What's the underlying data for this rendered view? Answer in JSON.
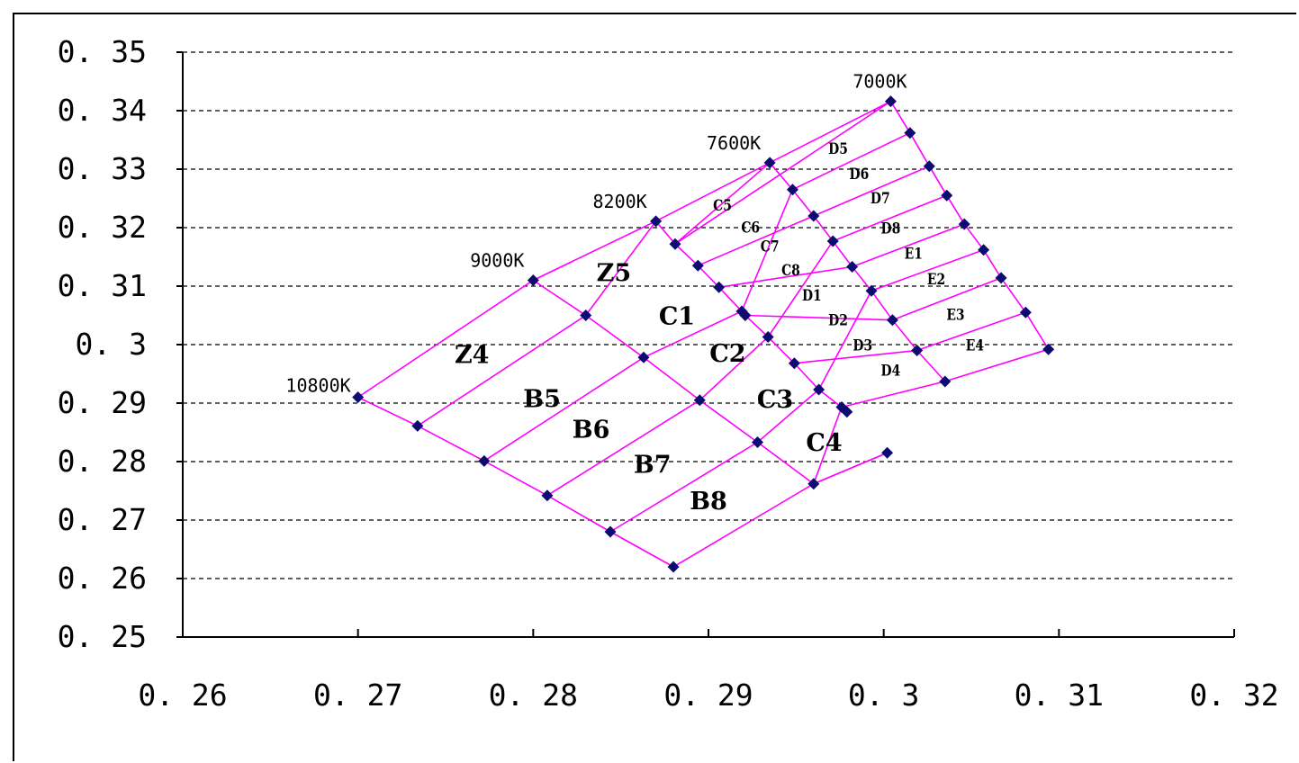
{
  "chart_data": {
    "type": "scatter",
    "title": "",
    "xlabel": "",
    "ylabel": "",
    "xlim": [
      0.26,
      0.32
    ],
    "ylim": [
      0.25,
      0.35
    ],
    "grid": "horizontal-dashed",
    "x_ticks": [
      "0. 26",
      "0. 27",
      "0. 28",
      "0. 29",
      "0. 3",
      "0. 31",
      "0. 32"
    ],
    "y_ticks": [
      "0. 35",
      "0. 34",
      "0. 33",
      "0. 32",
      "0. 31",
      "0. 3",
      "0. 29",
      "0. 28",
      "0. 27",
      "0. 26",
      "0. 25"
    ],
    "colors": {
      "mesh": "#ff00ff",
      "marker": "#0b0b70"
    },
    "points": [
      [
        0.27,
        0.291
      ],
      [
        0.2734,
        0.2861
      ],
      [
        0.2772,
        0.2801
      ],
      [
        0.2808,
        0.2742
      ],
      [
        0.2844,
        0.268
      ],
      [
        0.288,
        0.262
      ],
      [
        0.28,
        0.311
      ],
      [
        0.283,
        0.305
      ],
      [
        0.2863,
        0.2978
      ],
      [
        0.2895,
        0.2905
      ],
      [
        0.2928,
        0.2833
      ],
      [
        0.296,
        0.2762
      ],
      [
        0.3002,
        0.2815
      ],
      [
        0.287,
        0.3211
      ],
      [
        0.2881,
        0.3172
      ],
      [
        0.2894,
        0.3135
      ],
      [
        0.2906,
        0.3098
      ],
      [
        0.2919,
        0.3057
      ],
      [
        0.2921,
        0.305
      ],
      [
        0.2934,
        0.3013
      ],
      [
        0.2949,
        0.2968
      ],
      [
        0.2963,
        0.2923
      ],
      [
        0.2976,
        0.2893
      ],
      [
        0.2979,
        0.2885
      ],
      [
        0.2935,
        0.3311
      ],
      [
        0.2948,
        0.3265
      ],
      [
        0.296,
        0.322
      ],
      [
        0.2971,
        0.3177
      ],
      [
        0.2982,
        0.3133
      ],
      [
        0.2993,
        0.3092
      ],
      [
        0.3005,
        0.3042
      ],
      [
        0.3019,
        0.299
      ],
      [
        0.3035,
        0.2937
      ],
      [
        0.3004,
        0.3416
      ],
      [
        0.3015,
        0.3362
      ],
      [
        0.3026,
        0.3305
      ],
      [
        0.3036,
        0.3255
      ],
      [
        0.3046,
        0.3206
      ],
      [
        0.3057,
        0.3162
      ],
      [
        0.3067,
        0.3114
      ],
      [
        0.3081,
        0.3055
      ],
      [
        0.3094,
        0.2992
      ]
    ],
    "annotations": [
      {
        "text": "10800K",
        "x": 0.27,
        "y": 0.291
      },
      {
        "text": "9000K",
        "x": 0.28,
        "y": 0.311
      },
      {
        "text": "8200K",
        "x": 0.287,
        "y": 0.3211
      },
      {
        "text": "7600K",
        "x": 0.2935,
        "y": 0.3311
      },
      {
        "text": "7000K",
        "x": 0.3004,
        "y": 0.3416
      }
    ],
    "bins": [
      {
        "name": "Z4",
        "x": 0.2765,
        "y": 0.298,
        "size": "large"
      },
      {
        "name": "Z5",
        "x": 0.2846,
        "y": 0.312,
        "size": "large"
      },
      {
        "name": "B5",
        "x": 0.2805,
        "y": 0.2905,
        "size": "large"
      },
      {
        "name": "B6",
        "x": 0.2833,
        "y": 0.2852,
        "size": "large"
      },
      {
        "name": "B7",
        "x": 0.2868,
        "y": 0.2792,
        "size": "large"
      },
      {
        "name": "B8",
        "x": 0.29,
        "y": 0.273,
        "size": "large"
      },
      {
        "name": "C1",
        "x": 0.2882,
        "y": 0.3046,
        "size": "large"
      },
      {
        "name": "C2",
        "x": 0.2911,
        "y": 0.2982,
        "size": "large"
      },
      {
        "name": "C3",
        "x": 0.2938,
        "y": 0.2904,
        "size": "large"
      },
      {
        "name": "C4",
        "x": 0.2966,
        "y": 0.283,
        "size": "large"
      },
      {
        "name": "C5",
        "x": 0.2908,
        "y": 0.3236,
        "size": "small"
      },
      {
        "name": "C6",
        "x": 0.2924,
        "y": 0.3198,
        "size": "small"
      },
      {
        "name": "C7",
        "x": 0.2935,
        "y": 0.3166,
        "size": "small"
      },
      {
        "name": "C8",
        "x": 0.2947,
        "y": 0.3125,
        "size": "small"
      },
      {
        "name": "D1",
        "x": 0.2959,
        "y": 0.3082,
        "size": "small"
      },
      {
        "name": "D2",
        "x": 0.2974,
        "y": 0.304,
        "size": "small"
      },
      {
        "name": "D3",
        "x": 0.2988,
        "y": 0.2997,
        "size": "small"
      },
      {
        "name": "D4",
        "x": 0.3004,
        "y": 0.2954,
        "size": "small"
      },
      {
        "name": "D5",
        "x": 0.2974,
        "y": 0.3333,
        "size": "small"
      },
      {
        "name": "D6",
        "x": 0.2986,
        "y": 0.329,
        "size": "small"
      },
      {
        "name": "D7",
        "x": 0.2998,
        "y": 0.3248,
        "size": "small"
      },
      {
        "name": "D8",
        "x": 0.3004,
        "y": 0.3197,
        "size": "small"
      },
      {
        "name": "E1",
        "x": 0.3017,
        "y": 0.3154,
        "size": "small"
      },
      {
        "name": "E2",
        "x": 0.303,
        "y": 0.311,
        "size": "small"
      },
      {
        "name": "E3",
        "x": 0.3041,
        "y": 0.3049,
        "size": "small"
      },
      {
        "name": "E4",
        "x": 0.3052,
        "y": 0.2997,
        "size": "small"
      }
    ],
    "lines": [
      [
        [
          0.27,
          0.291
        ],
        [
          0.28,
          0.311
        ],
        [
          0.287,
          0.3211
        ],
        [
          0.2935,
          0.3311
        ],
        [
          0.3004,
          0.3416
        ]
      ],
      [
        [
          0.27,
          0.291
        ],
        [
          0.2734,
          0.2861
        ],
        [
          0.2772,
          0.2801
        ],
        [
          0.2808,
          0.2742
        ],
        [
          0.2844,
          0.268
        ],
        [
          0.288,
          0.262
        ]
      ],
      [
        [
          0.28,
          0.311
        ],
        [
          0.283,
          0.305
        ],
        [
          0.2863,
          0.2978
        ],
        [
          0.2895,
          0.2905
        ],
        [
          0.2928,
          0.2833
        ],
        [
          0.296,
          0.2762
        ],
        [
          0.3002,
          0.2815
        ]
      ],
      [
        [
          0.287,
          0.3211
        ],
        [
          0.2881,
          0.3172
        ],
        [
          0.2894,
          0.3135
        ],
        [
          0.2906,
          0.3098
        ],
        [
          0.2919,
          0.3057
        ],
        [
          0.2921,
          0.305
        ],
        [
          0.2934,
          0.3013
        ],
        [
          0.2949,
          0.2968
        ],
        [
          0.2963,
          0.2923
        ],
        [
          0.2976,
          0.2893
        ],
        [
          0.2979,
          0.2885
        ]
      ],
      [
        [
          0.2935,
          0.3311
        ],
        [
          0.2948,
          0.3265
        ],
        [
          0.296,
          0.322
        ],
        [
          0.2971,
          0.3177
        ],
        [
          0.2982,
          0.3133
        ],
        [
          0.2993,
          0.3092
        ],
        [
          0.3005,
          0.3042
        ],
        [
          0.3019,
          0.299
        ],
        [
          0.3035,
          0.2937
        ]
      ],
      [
        [
          0.3004,
          0.3416
        ],
        [
          0.3015,
          0.3362
        ],
        [
          0.3026,
          0.3305
        ],
        [
          0.3036,
          0.3255
        ],
        [
          0.3046,
          0.3206
        ],
        [
          0.3057,
          0.3162
        ],
        [
          0.3067,
          0.3114
        ],
        [
          0.3081,
          0.3055
        ],
        [
          0.3094,
          0.2992
        ]
      ],
      [
        [
          0.2734,
          0.2861
        ],
        [
          0.283,
          0.305
        ],
        [
          0.287,
          0.3211
        ]
      ],
      [
        [
          0.2772,
          0.2801
        ],
        [
          0.2863,
          0.2978
        ],
        [
          0.2919,
          0.3057
        ],
        [
          0.2948,
          0.3265
        ],
        [
          0.3015,
          0.3362
        ]
      ],
      [
        [
          0.2808,
          0.2742
        ],
        [
          0.2895,
          0.2905
        ],
        [
          0.2934,
          0.3013
        ],
        [
          0.2971,
          0.3177
        ],
        [
          0.3036,
          0.3255
        ]
      ],
      [
        [
          0.2844,
          0.268
        ],
        [
          0.2928,
          0.2833
        ],
        [
          0.2963,
          0.2923
        ],
        [
          0.2993,
          0.3092
        ],
        [
          0.3057,
          0.3162
        ]
      ],
      [
        [
          0.288,
          0.262
        ],
        [
          0.296,
          0.2762
        ],
        [
          0.2976,
          0.2893
        ],
        [
          0.3035,
          0.2937
        ],
        [
          0.3094,
          0.2992
        ]
      ],
      [
        [
          0.296,
          0.2762
        ],
        [
          0.3002,
          0.2815
        ]
      ],
      [
        [
          0.2881,
          0.3172
        ],
        [
          0.3004,
          0.3416
        ]
      ],
      [
        [
          0.2881,
          0.3172
        ],
        [
          0.2935,
          0.3311
        ]
      ],
      [
        [
          0.2894,
          0.3135
        ],
        [
          0.296,
          0.322
        ],
        [
          0.3026,
          0.3305
        ]
      ],
      [
        [
          0.2906,
          0.3098
        ],
        [
          0.2982,
          0.3133
        ],
        [
          0.3046,
          0.3206
        ]
      ],
      [
        [
          0.2921,
          0.305
        ],
        [
          0.3005,
          0.3042
        ],
        [
          0.3067,
          0.3114
        ]
      ],
      [
        [
          0.2949,
          0.2968
        ],
        [
          0.3019,
          0.299
        ],
        [
          0.3081,
          0.3055
        ]
      ]
    ]
  }
}
